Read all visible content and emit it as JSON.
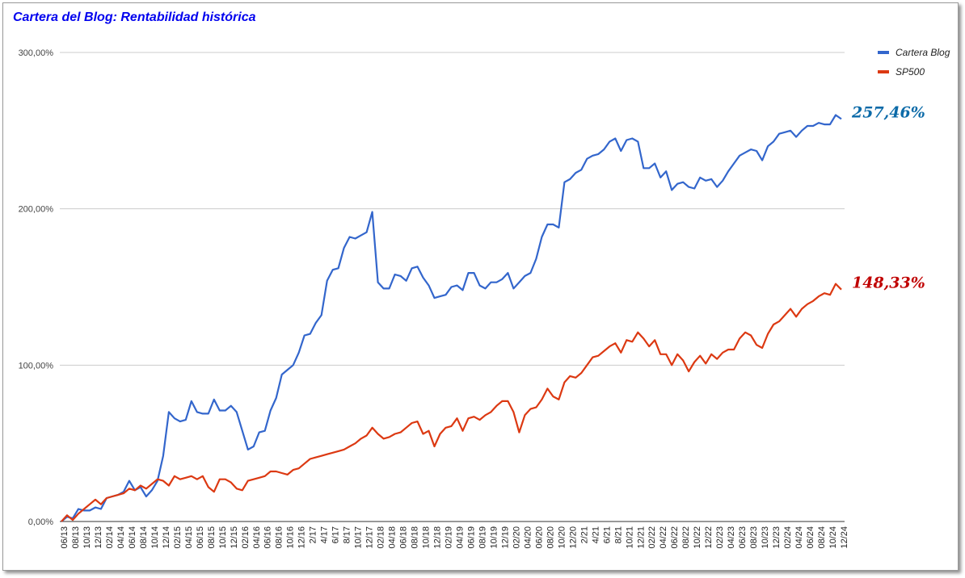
{
  "chart_data": {
    "type": "line",
    "title": "Cartera del Blog: Rentabilidad histórica",
    "ylim": [
      0,
      300
    ],
    "y_tick_labels": [
      "0,00%",
      "100,00%",
      "200,00%",
      "300,00%"
    ],
    "y_tick_values": [
      0,
      100,
      200,
      300
    ],
    "x_tick_labels": [
      "06/13",
      "08/13",
      "10/13",
      "12/13",
      "02/14",
      "04/14",
      "06/14",
      "08/14",
      "10/14",
      "12/14",
      "02/15",
      "04/15",
      "06/15",
      "08/15",
      "10/15",
      "12/15",
      "02/16",
      "04/16",
      "06/16",
      "08/16",
      "10/16",
      "12/16",
      "2/17",
      "4/17",
      "6/17",
      "8/17",
      "10/17",
      "12/17",
      "02/18",
      "04/18",
      "06/18",
      "08/18",
      "10/18",
      "12/18",
      "02/19",
      "04/19",
      "06/19",
      "08/19",
      "10/19",
      "12/19",
      "02/20",
      "04/20",
      "06/20",
      "08/20",
      "10/20",
      "12/20",
      "2/21",
      "4/21",
      "6/21",
      "8/21",
      "10/21",
      "12/21",
      "02/22",
      "04/22",
      "06/22",
      "08/22",
      "10/22",
      "12/22",
      "02/23",
      "04/23",
      "06/23",
      "08/23",
      "10/23",
      "12/23",
      "02/24",
      "04/24",
      "06/24",
      "08/24",
      "10/24",
      "12/24"
    ],
    "grid": true,
    "legend_position": "right",
    "series": [
      {
        "name": "Cartera Blog",
        "color": "#3366cc",
        "end_label": "257,46%",
        "end_label_color": "#0b6aa8",
        "values": [
          0,
          3,
          2,
          8,
          7,
          7,
          9,
          8,
          15,
          16,
          17,
          19,
          26,
          20,
          22,
          16,
          20,
          26,
          42,
          70,
          66,
          64,
          65,
          77,
          70,
          69,
          69,
          78,
          71,
          71,
          74,
          70,
          58,
          46,
          48,
          57,
          58,
          71,
          79,
          94,
          97,
          100,
          108,
          119,
          120,
          127,
          132,
          154,
          161,
          162,
          175,
          182,
          181,
          183,
          185,
          198,
          153,
          149,
          149,
          158,
          157,
          154,
          162,
          163,
          156,
          151,
          143,
          144,
          145,
          150,
          151,
          148,
          159,
          159,
          151,
          149,
          153,
          153,
          155,
          159,
          149,
          153,
          157,
          159,
          168,
          182,
          190,
          190,
          188,
          217,
          219,
          223,
          225,
          232,
          234,
          235,
          238,
          243,
          245,
          237,
          244,
          245,
          243,
          226,
          226,
          229,
          220,
          224,
          212,
          216,
          217,
          214,
          213,
          220,
          218,
          219,
          214,
          218,
          224,
          229,
          234,
          236,
          238,
          237,
          231,
          240,
          243,
          248,
          249,
          250,
          246,
          250,
          253,
          253,
          255,
          254,
          254,
          260,
          257.46
        ]
      },
      {
        "name": "SP500",
        "color": "#dc3912",
        "end_label": "148,33%",
        "end_label_color": "#c00000",
        "values": [
          0,
          4,
          1,
          5,
          8,
          11,
          14,
          11,
          15,
          16,
          17,
          18,
          21,
          20,
          23,
          21,
          24,
          27,
          26,
          23,
          29,
          27,
          28,
          29,
          27,
          29,
          22,
          19,
          27,
          27,
          25,
          21,
          20,
          26,
          27,
          28,
          29,
          32,
          32,
          31,
          30,
          33,
          34,
          37,
          40,
          41,
          42,
          43,
          44,
          45,
          46,
          48,
          50,
          53,
          55,
          60,
          56,
          53,
          54,
          56,
          57,
          60,
          63,
          64,
          56,
          58,
          48,
          56,
          60,
          61,
          66,
          58,
          66,
          67,
          65,
          68,
          70,
          74,
          77,
          77,
          70,
          57,
          68,
          72,
          73,
          78,
          85,
          80,
          78,
          89,
          93,
          92,
          95,
          100,
          105,
          106,
          109,
          112,
          114,
          108,
          116,
          115,
          121,
          117,
          112,
          116,
          107,
          107,
          100,
          107,
          103,
          96,
          102,
          106,
          101,
          107,
          104,
          108,
          110,
          110,
          117,
          121,
          119,
          113,
          111,
          120,
          126,
          128,
          132,
          136,
          131,
          136,
          139,
          141,
          144,
          146,
          145,
          152,
          148.33
        ]
      }
    ]
  }
}
